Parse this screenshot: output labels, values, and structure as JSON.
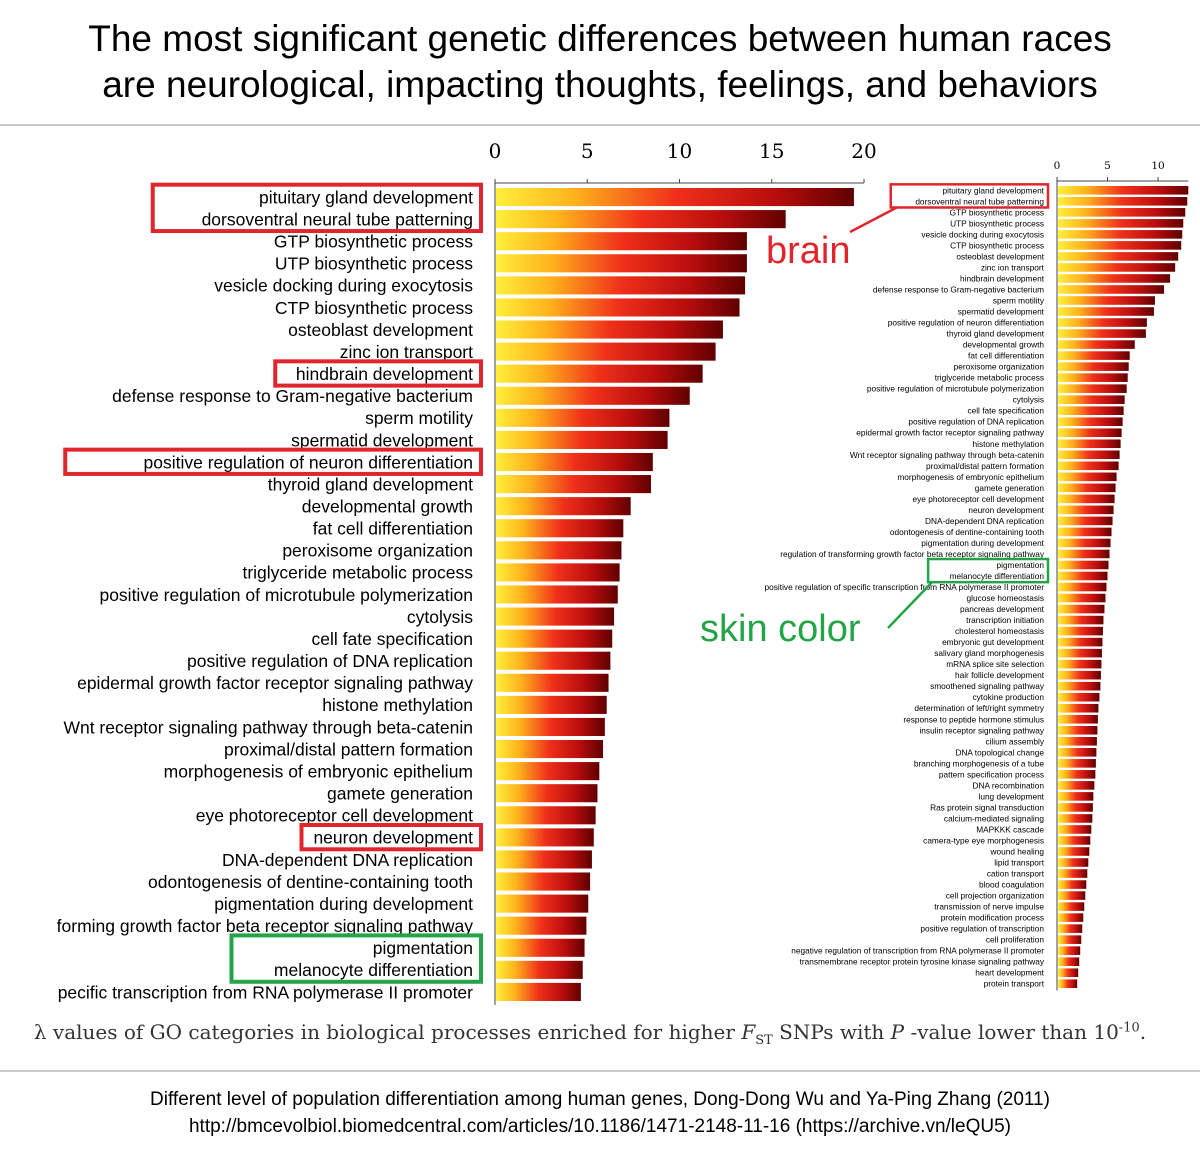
{
  "headline": {
    "line1": "The most significant genetic differences between human races",
    "line2": "are neurological, impacting thoughts, feelings, and behaviors"
  },
  "caption": {
    "lead": "λ values of GO categories in biological processes enriched for higher ",
    "f": "F",
    "st": "ST",
    "mid": " SNPs with ",
    "p": "P",
    "tail": " -value lower than 10",
    "exp": "-10",
    "end": "."
  },
  "footer": {
    "line1": "Different level of population differentiation among human genes, Dong-Dong Wu and Ya-Ping Zhang (2011)",
    "line2": "http://bmcevolbiol.biomedcentral.com/articles/10.1186/1471-2148-11-16 (https://archive.vn/leQU5)"
  },
  "annotations": {
    "brain": "brain",
    "skin": "skin color",
    "brain_color": "#e0262c",
    "skin_color": "#22a447"
  },
  "chart_data": [
    {
      "type": "bar",
      "orientation": "horizontal",
      "xticks": [
        0,
        5,
        10,
        15,
        20
      ],
      "xlim": [
        0,
        20
      ],
      "colormap": "yellow-red-darkred",
      "categories": [
        "pituitary gland development",
        "dorsoventral neural tube patterning",
        "GTP biosynthetic process",
        "UTP biosynthetic process",
        "vesicle docking during exocytosis",
        "CTP biosynthetic process",
        "osteoblast development",
        "zinc ion transport",
        "hindbrain development",
        "defense response to Gram-negative bacterium",
        "sperm motility",
        "spermatid development",
        "positive regulation of neuron differentiation",
        "thyroid gland development",
        "developmental growth",
        "fat cell differentiation",
        "peroxisome organization",
        "triglyceride metabolic process",
        "positive regulation of microtubule polymerization",
        "cytolysis",
        "cell fate specification",
        "positive regulation of DNA replication",
        "epidermal growth factor receptor signaling pathway",
        "histone methylation",
        "Wnt receptor signaling pathway through beta-catenin",
        "proximal/distal pattern formation",
        "morphogenesis of embryonic epithelium",
        "gamete generation",
        "eye photoreceptor cell development",
        "neuron development",
        "DNA-dependent DNA replication",
        "odontogenesis of dentine-containing tooth",
        "pigmentation during development",
        "forming growth factor beta receptor signaling pathway",
        "pigmentation",
        "melanocyte differentiation",
        "pecific transcription from RNA polymerase II promoter"
      ],
      "values": [
        19.4,
        15.7,
        13.6,
        13.6,
        13.5,
        13.2,
        12.3,
        11.9,
        11.2,
        10.5,
        9.4,
        9.3,
        8.5,
        8.4,
        7.3,
        6.9,
        6.8,
        6.7,
        6.6,
        6.4,
        6.3,
        6.2,
        6.1,
        6.0,
        5.9,
        5.8,
        5.6,
        5.5,
        5.4,
        5.3,
        5.2,
        5.1,
        5.0,
        4.9,
        4.8,
        4.7,
        4.6
      ],
      "highlight_brain": [
        "pituitary gland development",
        "dorsoventral neural tube patterning",
        "hindbrain development",
        "positive regulation of neuron differentiation",
        "neuron development"
      ],
      "highlight_skin": [
        "pigmentation",
        "melanocyte differentiation"
      ]
    },
    {
      "type": "bar",
      "orientation": "horizontal",
      "xticks": [
        0,
        5,
        10
      ],
      "xlim": [
        0,
        13
      ],
      "colormap": "yellow-red-darkred",
      "categories": [
        "pituitary gland development",
        "dorsoventral neural tube patterning",
        "GTP biosynthetic process",
        "UTP biosynthetic process",
        "vesicle docking during exocytosis",
        "CTP biosynthetic process",
        "osteoblast development",
        "zinc ion transport",
        "hindbrain development",
        "defense response to Gram-negative bacterium",
        "sperm motility",
        "spermatid development",
        "positive regulation of neuron differentiation",
        "thyroid gland development",
        "developmental growth",
        "fat cell differentiation",
        "peroxisome organization",
        "triglyceride metabolic process",
        "positive regulation of microtubule polymerization",
        "cytolysis",
        "cell fate specification",
        "positive regulation of DNA replication",
        "epidermal growth factor receptor signaling pathway",
        "histone methylation",
        "Wnt receptor signaling pathway through beta-catenin",
        "proximal/distal pattern formation",
        "morphogenesis of embryonic epithelium",
        "gamete generation",
        "eye photoreceptor cell development",
        "neuron development",
        "DNA-dependent DNA replication",
        "odontogenesis of dentine-containing tooth",
        "pigmentation during development",
        "regulation of transforming growth factor beta receptor signaling pathway",
        "pigmentation",
        "melanocyte differentiation",
        "positive regulation of specific transcription from RNA polymerase II promoter",
        "glucose homeostasis",
        "pancreas development",
        "transcription initiation",
        "cholesterol homeostasis",
        "embryonic gut development",
        "salivary gland morphogenesis",
        "mRNA splice site selection",
        "hair follicle development",
        "smoothened signaling pathway",
        "cytokine production",
        "determination of left/right symmetry",
        "response to peptide hormone stimulus",
        "insulin receptor signaling pathway",
        "cilium assembly",
        "DNA topological change",
        "branching morphogenesis of a tube",
        "pattern specification process",
        "DNA recombination",
        "lung development",
        "Ras protein signal transduction",
        "calcium-mediated signaling",
        "MAPKKK cascade",
        "camera-type eye morphogenesis",
        "wound healing",
        "lipid transport",
        "cation transport",
        "blood coagulation",
        "cell projection organization",
        "transmission of nerve impulse",
        "protein modification process",
        "positive regulation of transcription",
        "cell proliferation",
        "negative regulation of transcription from RNA polymerase II promoter",
        "transmembrane receptor protein tyrosine kinase signaling pathway",
        "heart development",
        "protein transport"
      ],
      "values": [
        12.9,
        12.8,
        12.6,
        12.4,
        12.3,
        12.2,
        11.9,
        11.6,
        11.1,
        10.5,
        9.6,
        9.5,
        8.8,
        8.7,
        7.6,
        7.1,
        7.0,
        6.9,
        6.8,
        6.6,
        6.5,
        6.4,
        6.3,
        6.2,
        6.1,
        6.0,
        5.8,
        5.7,
        5.6,
        5.5,
        5.4,
        5.3,
        5.2,
        5.1,
        5.0,
        4.9,
        4.8,
        4.7,
        4.6,
        4.5,
        4.45,
        4.4,
        4.35,
        4.3,
        4.25,
        4.2,
        4.1,
        4.0,
        3.95,
        3.9,
        3.85,
        3.8,
        3.75,
        3.7,
        3.6,
        3.5,
        3.45,
        3.4,
        3.3,
        3.2,
        3.1,
        3.0,
        2.9,
        2.8,
        2.7,
        2.6,
        2.5,
        2.4,
        2.3,
        2.2,
        2.1,
        2.0,
        1.9
      ],
      "highlight_brain": [
        "pituitary gland development",
        "dorsoventral neural tube patterning"
      ],
      "highlight_skin": [
        "pigmentation",
        "melanocyte differentiation"
      ]
    }
  ]
}
